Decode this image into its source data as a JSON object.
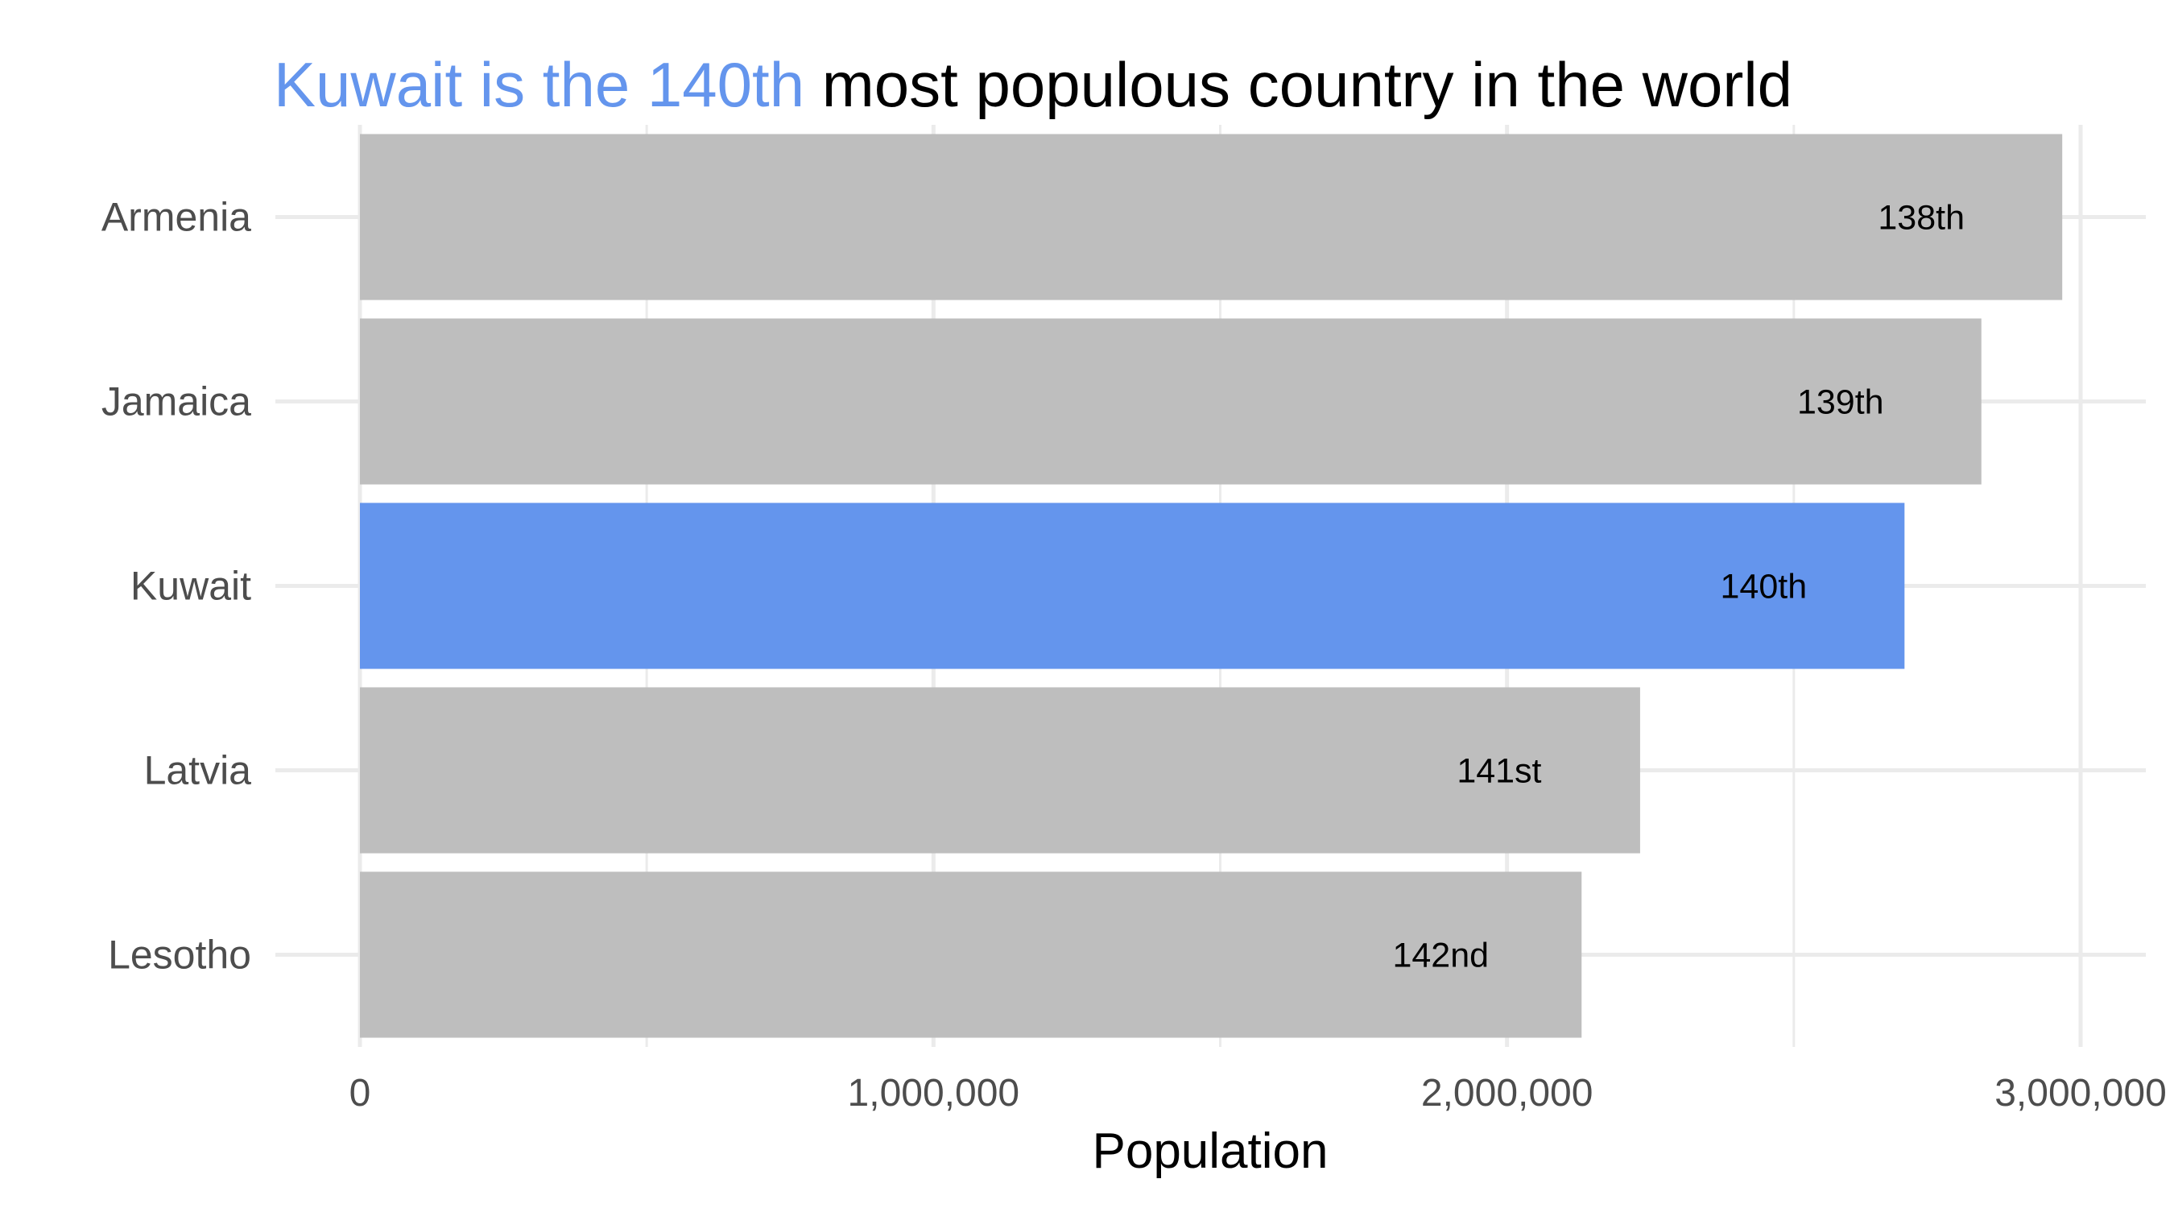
{
  "chart_data": {
    "type": "bar",
    "orientation": "horizontal",
    "title_highlight": "Kuwait is the 140th",
    "title_rest": " most populous country in the world",
    "xlabel": "Population",
    "ylabel": "",
    "categories": [
      "Armenia",
      "Jamaica",
      "Kuwait",
      "Latvia",
      "Lesotho"
    ],
    "values": [
      2968000,
      2827000,
      2693000,
      2232000,
      2130000
    ],
    "data_labels": [
      "138th",
      "139th",
      "140th",
      "141st",
      "142nd"
    ],
    "highlight_index": 2,
    "xlim": [
      0,
      3000000
    ],
    "x_ticks": [
      0,
      1000000,
      2000000,
      3000000
    ],
    "x_tick_labels": [
      "0",
      "1,000,000",
      "2,000,000",
      "3,000,000"
    ],
    "grid": true,
    "legend": "none",
    "colors": {
      "bar": "#bebebe",
      "highlight": "#6495ed",
      "grid": "#ebebeb"
    }
  }
}
